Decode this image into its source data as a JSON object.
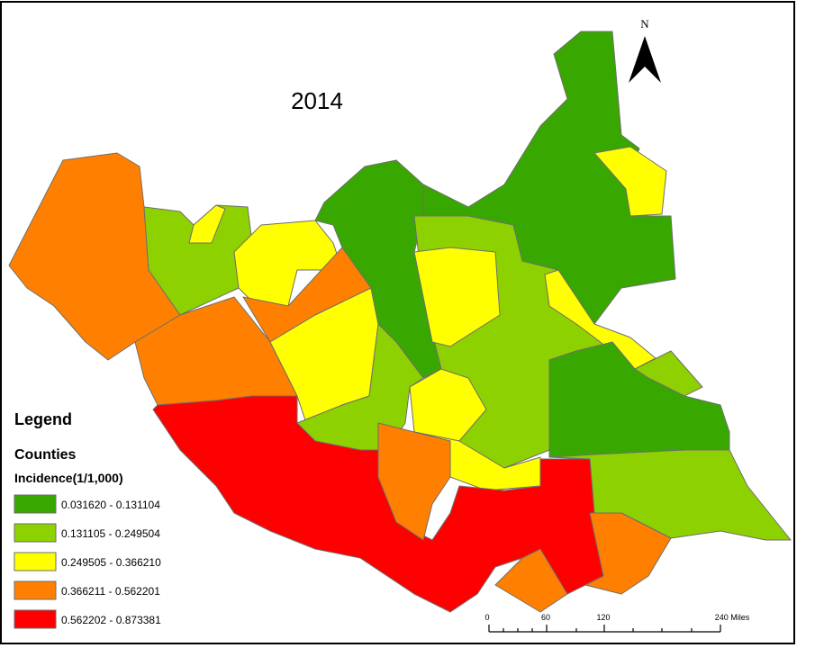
{
  "map": {
    "title": "2014",
    "north_label": "N",
    "legend": {
      "heading": "Legend",
      "layer": "Counties",
      "field": "Incidence(1/1,000)",
      "classes": [
        {
          "label": "0.031620 - 0.131104",
          "color": "#38a800"
        },
        {
          "label": "0.131105 - 0.249504",
          "color": "#8ed100"
        },
        {
          "label": "0.249505 - 0.366210",
          "color": "#ffff00"
        },
        {
          "label": "0.366211 - 0.562201",
          "color": "#ff8000"
        },
        {
          "label": "0.562202 - 0.873381",
          "color": "#ff0000"
        }
      ]
    },
    "scale_bar": {
      "labels": [
        "0",
        "60",
        "120",
        "240 Miles"
      ]
    }
  }
}
